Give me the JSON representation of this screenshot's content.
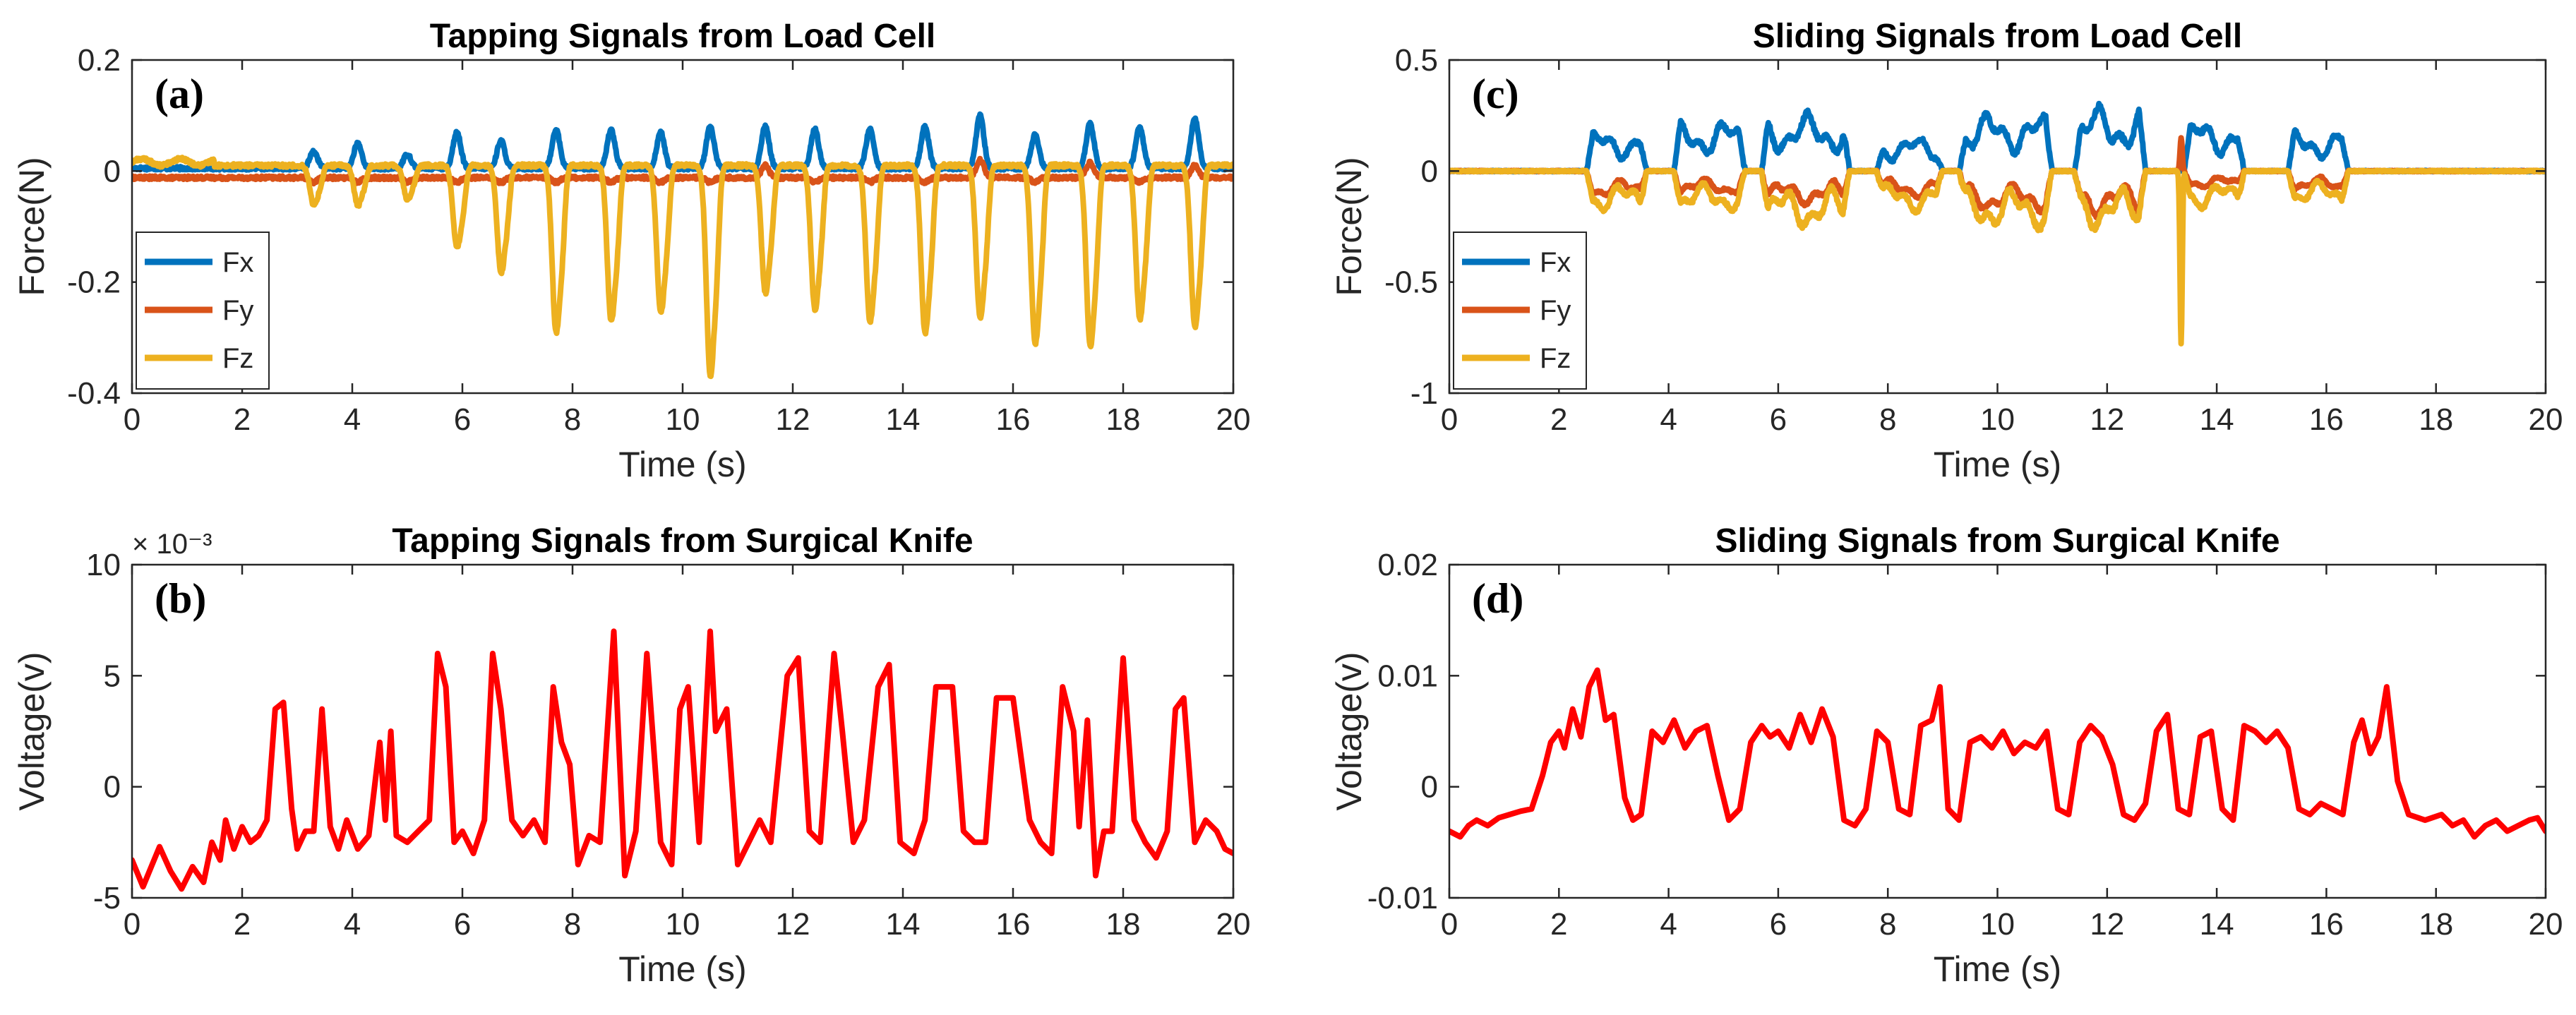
{
  "chart_data": [
    {
      "type": "line",
      "panel_label": "(a)",
      "title": "Tapping Signals from Load Cell",
      "xlabel": "Time (s)",
      "ylabel": "Force(N)",
      "xlim": [
        0,
        20
      ],
      "ylim": [
        -0.4,
        0.2
      ],
      "xticks": [
        0,
        2,
        4,
        6,
        8,
        10,
        12,
        14,
        16,
        18,
        20
      ],
      "yticks": [
        -0.4,
        -0.2,
        0,
        0.2
      ],
      "ytick_labels": [
        "-0.4",
        "-0.2",
        "0",
        "0.2"
      ],
      "exponent_label": "",
      "legend_location": "bottom-left",
      "grid": false,
      "signal_kind": "tapping",
      "events": [
        3.3,
        4.1,
        5.0,
        5.9,
        6.7,
        7.7,
        8.7,
        9.6,
        10.5,
        11.5,
        12.4,
        13.4,
        14.4,
        15.4,
        16.4,
        17.4,
        18.3,
        19.3
      ],
      "series": [
        {
          "name": "Fx",
          "color": "#0072BD",
          "line_width": 8,
          "baseline": 0.005,
          "peaks": [
            0.035,
            0.05,
            0.03,
            0.07,
            0.055,
            0.075,
            0.075,
            0.07,
            0.08,
            0.08,
            0.075,
            0.075,
            0.08,
            0.1,
            0.065,
            0.085,
            0.08,
            0.095
          ]
        },
        {
          "name": "Fy",
          "color": "#D95319",
          "line_width": 8,
          "baseline": -0.012,
          "peaks": [
            -0.02,
            -0.02,
            -0.02,
            -0.02,
            -0.02,
            -0.02,
            -0.02,
            -0.02,
            -0.02,
            0.01,
            -0.02,
            -0.02,
            -0.02,
            0.02,
            -0.02,
            0.015,
            -0.02,
            0.01
          ]
        },
        {
          "name": "Fz",
          "color": "#EDB120",
          "line_width": 8,
          "baseline": 0.01,
          "peaks": [
            -0.06,
            -0.06,
            -0.05,
            -0.135,
            -0.18,
            -0.285,
            -0.265,
            -0.25,
            -0.36,
            -0.215,
            -0.245,
            -0.265,
            -0.285,
            -0.26,
            -0.305,
            -0.31,
            -0.26,
            -0.275
          ]
        }
      ]
    },
    {
      "type": "line",
      "panel_label": "(b)",
      "title": "Tapping Signals from Surgical Knife",
      "xlabel": "Time (s)",
      "ylabel": "Voltage(v)",
      "xlim": [
        0,
        20
      ],
      "ylim": [
        -0.005,
        0.01
      ],
      "xticks": [
        0,
        2,
        4,
        6,
        8,
        10,
        12,
        14,
        16,
        18,
        20
      ],
      "yticks": [
        -0.005,
        0,
        0.005,
        0.01
      ],
      "ytick_labels": [
        "-5",
        "0",
        "5",
        "10"
      ],
      "exponent_label": "× 10⁻³",
      "legend_location": "none",
      "grid": false,
      "series": [
        {
          "color": "#FF0000",
          "line_width": 8,
          "x": [
            0,
            0.2,
            0.35,
            0.5,
            0.7,
            0.9,
            1.1,
            1.3,
            1.45,
            1.6,
            1.7,
            1.85,
            2.0,
            2.15,
            2.3,
            2.45,
            2.6,
            2.75,
            2.9,
            3.0,
            3.15,
            3.3,
            3.45,
            3.6,
            3.75,
            3.9,
            4.1,
            4.3,
            4.5,
            4.6,
            4.7,
            4.8,
            5.0,
            5.2,
            5.4,
            5.55,
            5.7,
            5.85,
            6.0,
            6.2,
            6.4,
            6.55,
            6.7,
            6.9,
            7.1,
            7.3,
            7.5,
            7.65,
            7.8,
            7.95,
            8.1,
            8.3,
            8.5,
            8.75,
            8.95,
            9.15,
            9.35,
            9.6,
            9.8,
            9.95,
            10.1,
            10.3,
            10.5,
            10.6,
            10.8,
            11.0,
            11.2,
            11.4,
            11.6,
            11.9,
            12.1,
            12.3,
            12.5,
            12.75,
            12.9,
            13.1,
            13.3,
            13.55,
            13.75,
            13.95,
            14.2,
            14.4,
            14.6,
            14.9,
            15.1,
            15.3,
            15.5,
            15.7,
            16.0,
            16.3,
            16.5,
            16.7,
            16.9,
            17.1,
            17.2,
            17.35,
            17.5,
            17.65,
            17.8,
            18.0,
            18.2,
            18.4,
            18.6,
            18.8,
            18.95,
            19.1,
            19.3,
            19.5,
            19.7,
            19.85,
            20.0
          ],
          "y": [
            -0.0033,
            -0.0045,
            -0.0036,
            -0.0027,
            -0.0038,
            -0.0046,
            -0.0036,
            -0.0043,
            -0.0025,
            -0.0033,
            -0.0015,
            -0.0028,
            -0.0018,
            -0.0025,
            -0.0022,
            -0.0015,
            0.0035,
            0.0038,
            -0.001,
            -0.0028,
            -0.002,
            -0.002,
            0.0035,
            -0.0018,
            -0.0028,
            -0.0015,
            -0.0028,
            -0.0022,
            0.002,
            -0.0015,
            0.0025,
            -0.0022,
            -0.0025,
            -0.002,
            -0.0015,
            0.006,
            0.0045,
            -0.0025,
            -0.002,
            -0.003,
            -0.0015,
            0.006,
            0.0035,
            -0.0015,
            -0.0022,
            -0.0015,
            -0.0025,
            0.0045,
            0.002,
            0.001,
            -0.0035,
            -0.0022,
            -0.0025,
            0.007,
            -0.004,
            -0.002,
            0.006,
            -0.0025,
            -0.0035,
            0.0035,
            0.0045,
            -0.0025,
            0.007,
            0.0025,
            0.0035,
            -0.0035,
            -0.0025,
            -0.0015,
            -0.0025,
            0.005,
            0.0058,
            -0.002,
            -0.0025,
            0.006,
            0.0025,
            -0.0025,
            -0.0015,
            0.0045,
            0.0055,
            -0.0025,
            -0.003,
            -0.0015,
            0.0045,
            0.0045,
            -0.002,
            -0.0025,
            -0.0025,
            0.004,
            0.004,
            -0.0015,
            -0.0025,
            -0.003,
            0.0045,
            0.0025,
            -0.0018,
            0.003,
            -0.004,
            -0.002,
            -0.002,
            0.0058,
            -0.0015,
            -0.0025,
            -0.0032,
            -0.002,
            0.0035,
            0.004,
            -0.0025,
            -0.0015,
            -0.002,
            -0.0028,
            -0.003
          ]
        }
      ]
    },
    {
      "type": "line",
      "panel_label": "(c)",
      "title": "Sliding Signals from Load Cell",
      "xlabel": "Time (s)",
      "ylabel": "Force(N)",
      "xlim": [
        0,
        20
      ],
      "ylim": [
        -1,
        0.5
      ],
      "xticks": [
        0,
        2,
        4,
        6,
        8,
        10,
        12,
        14,
        16,
        18,
        20
      ],
      "yticks": [
        -1,
        -0.5,
        0,
        0.5
      ],
      "ytick_labels": [
        "-1",
        "-0.5",
        "0",
        "0.5"
      ],
      "exponent_label": "",
      "legend_location": "bottom-left",
      "grid": false,
      "signal_kind": "sliding",
      "segments": [
        [
          2.5,
          3.6
        ],
        [
          4.1,
          5.4
        ],
        [
          5.7,
          7.3
        ],
        [
          7.8,
          9.0
        ],
        [
          9.3,
          11.0
        ],
        [
          11.4,
          12.7
        ],
        [
          13.4,
          14.5
        ],
        [
          15.3,
          16.4
        ]
      ],
      "spike": {
        "x": 13.35,
        "Fy": 0.15,
        "Fz": -0.78
      },
      "series": [
        {
          "name": "Fx",
          "color": "#0072BD",
          "line_width": 8,
          "levels": [
            0.12,
            0.15,
            0.17,
            0.1,
            0.17,
            0.19,
            0.15,
            0.12
          ]
        },
        {
          "name": "Fy",
          "color": "#D95319",
          "line_width": 8,
          "levels": [
            -0.08,
            -0.07,
            -0.1,
            -0.08,
            -0.12,
            -0.13,
            -0.05,
            -0.06
          ]
        },
        {
          "name": "Fz",
          "color": "#EDB120",
          "line_width": 8,
          "levels": [
            -0.12,
            -0.12,
            -0.17,
            -0.12,
            -0.17,
            -0.17,
            -0.11,
            -0.1
          ]
        }
      ]
    },
    {
      "type": "line",
      "panel_label": "(d)",
      "title": "Sliding Signals from Surgical Knife",
      "xlabel": "Time (s)",
      "ylabel": "Voltage(v)",
      "xlim": [
        0,
        20
      ],
      "ylim": [
        -0.01,
        0.02
      ],
      "xticks": [
        0,
        2,
        4,
        6,
        8,
        10,
        12,
        14,
        16,
        18,
        20
      ],
      "yticks": [
        -0.01,
        0,
        0.01,
        0.02
      ],
      "ytick_labels": [
        "-0.01",
        "0",
        "0.01",
        "0.02"
      ],
      "exponent_label": "",
      "legend_location": "none",
      "grid": false,
      "series": [
        {
          "color": "#FF0000",
          "line_width": 8,
          "x": [
            0,
            0.2,
            0.35,
            0.5,
            0.7,
            0.9,
            1.1,
            1.3,
            1.5,
            1.7,
            1.85,
            2.0,
            2.1,
            2.25,
            2.4,
            2.55,
            2.7,
            2.85,
            3.0,
            3.2,
            3.35,
            3.5,
            3.7,
            3.9,
            4.1,
            4.3,
            4.5,
            4.7,
            4.9,
            5.1,
            5.3,
            5.5,
            5.7,
            5.85,
            6.0,
            6.2,
            6.4,
            6.6,
            6.8,
            7.0,
            7.2,
            7.4,
            7.6,
            7.8,
            8.0,
            8.2,
            8.4,
            8.6,
            8.8,
            8.95,
            9.1,
            9.3,
            9.5,
            9.7,
            9.9,
            10.1,
            10.3,
            10.5,
            10.7,
            10.9,
            11.1,
            11.3,
            11.5,
            11.7,
            11.9,
            12.1,
            12.3,
            12.5,
            12.7,
            12.9,
            13.1,
            13.3,
            13.5,
            13.7,
            13.9,
            14.1,
            14.3,
            14.5,
            14.7,
            14.9,
            15.1,
            15.3,
            15.5,
            15.7,
            15.9,
            16.1,
            16.3,
            16.5,
            16.65,
            16.8,
            16.95,
            17.1,
            17.3,
            17.5,
            17.8,
            18.1,
            18.3,
            18.5,
            18.7,
            18.9,
            19.1,
            19.3,
            19.5,
            19.7,
            19.85,
            20.0
          ],
          "y": [
            -0.004,
            -0.0045,
            -0.0035,
            -0.003,
            -0.0035,
            -0.0028,
            -0.0025,
            -0.0022,
            -0.002,
            0.001,
            0.004,
            0.005,
            0.0035,
            0.007,
            0.0045,
            0.009,
            0.0105,
            0.006,
            0.0065,
            -0.001,
            -0.003,
            -0.0025,
            0.005,
            0.004,
            0.006,
            0.0035,
            0.005,
            0.0055,
            0.001,
            -0.003,
            -0.002,
            0.004,
            0.0055,
            0.0045,
            0.005,
            0.0035,
            0.0065,
            0.004,
            0.007,
            0.0045,
            -0.003,
            -0.0035,
            -0.002,
            0.005,
            0.004,
            -0.002,
            -0.0025,
            0.0055,
            0.006,
            0.009,
            -0.002,
            -0.003,
            0.004,
            0.0045,
            0.0035,
            0.005,
            0.003,
            0.004,
            0.0035,
            0.005,
            -0.002,
            -0.0025,
            0.004,
            0.0055,
            0.0045,
            0.002,
            -0.0025,
            -0.003,
            -0.0015,
            0.005,
            0.0065,
            -0.002,
            -0.0025,
            0.0045,
            0.005,
            -0.002,
            -0.003,
            0.0055,
            0.005,
            0.004,
            0.005,
            0.0035,
            -0.002,
            -0.0025,
            -0.0015,
            -0.002,
            -0.0025,
            0.004,
            0.006,
            0.003,
            0.0045,
            0.009,
            0.0005,
            -0.0025,
            -0.003,
            -0.0025,
            -0.0035,
            -0.003,
            -0.0045,
            -0.0035,
            -0.003,
            -0.004,
            -0.0035,
            -0.003,
            -0.0028,
            -0.004
          ]
        }
      ]
    }
  ]
}
